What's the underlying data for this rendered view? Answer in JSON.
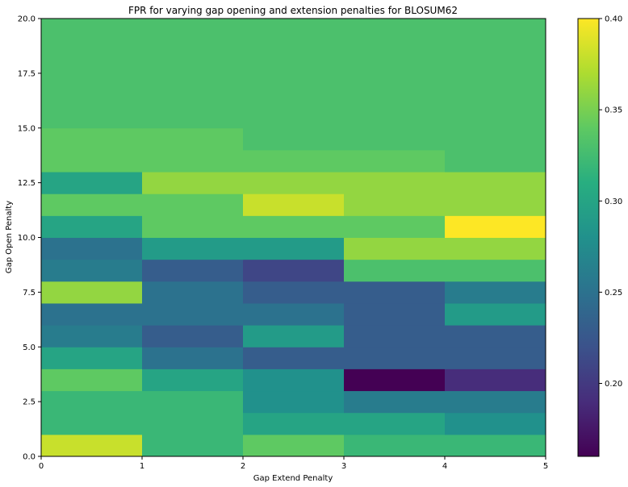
{
  "chart_data": {
    "type": "heatmap",
    "title": "FPR for varying gap opening and extension penalties for BLOSUM62",
    "xlabel": "Gap Extend Penalty",
    "ylabel": "Gap Open Penalty",
    "xlim": [
      0,
      5
    ],
    "ylim": [
      0,
      20
    ],
    "x_ticks": [
      "0",
      "1",
      "2",
      "3",
      "4",
      "5"
    ],
    "y_ticks": [
      "0.0",
      "2.5",
      "5.0",
      "7.5",
      "10.0",
      "12.5",
      "15.0",
      "17.5",
      "20.0"
    ],
    "colorbar": {
      "min": 0.16,
      "max": 0.4,
      "ticks": [
        "0.20",
        "0.25",
        "0.30",
        "0.35",
        "0.40"
      ],
      "colormap": "viridis"
    },
    "x_edges": [
      0,
      1,
      2,
      3,
      4,
      5
    ],
    "y_edges": [
      0,
      1,
      2,
      3,
      4,
      5,
      6,
      7,
      8,
      9,
      10,
      11,
      12,
      13,
      14,
      15,
      20
    ],
    "values": [
      [
        0.38,
        0.32,
        0.34,
        0.32,
        0.32
      ],
      [
        0.32,
        0.32,
        0.3,
        0.3,
        0.28
      ],
      [
        0.32,
        0.32,
        0.28,
        0.26,
        0.26
      ],
      [
        0.34,
        0.3,
        0.28,
        0.16,
        0.19
      ],
      [
        0.3,
        0.25,
        0.23,
        0.23,
        0.23
      ],
      [
        0.26,
        0.23,
        0.29,
        0.23,
        0.23
      ],
      [
        0.25,
        0.25,
        0.25,
        0.23,
        0.29
      ],
      [
        0.36,
        0.25,
        0.23,
        0.23,
        0.26
      ],
      [
        0.26,
        0.23,
        0.21,
        0.33,
        0.33
      ],
      [
        0.25,
        0.29,
        0.29,
        0.36,
        0.36
      ],
      [
        0.3,
        0.34,
        0.34,
        0.34,
        0.4
      ],
      [
        0.34,
        0.34,
        0.38,
        0.36,
        0.36
      ],
      [
        0.3,
        0.36,
        0.36,
        0.36,
        0.36
      ],
      [
        0.34,
        0.34,
        0.34,
        0.34,
        0.33
      ],
      [
        0.34,
        0.34,
        0.33,
        0.33,
        0.33
      ],
      [
        0.33,
        0.33,
        0.33,
        0.33,
        0.33
      ]
    ]
  }
}
